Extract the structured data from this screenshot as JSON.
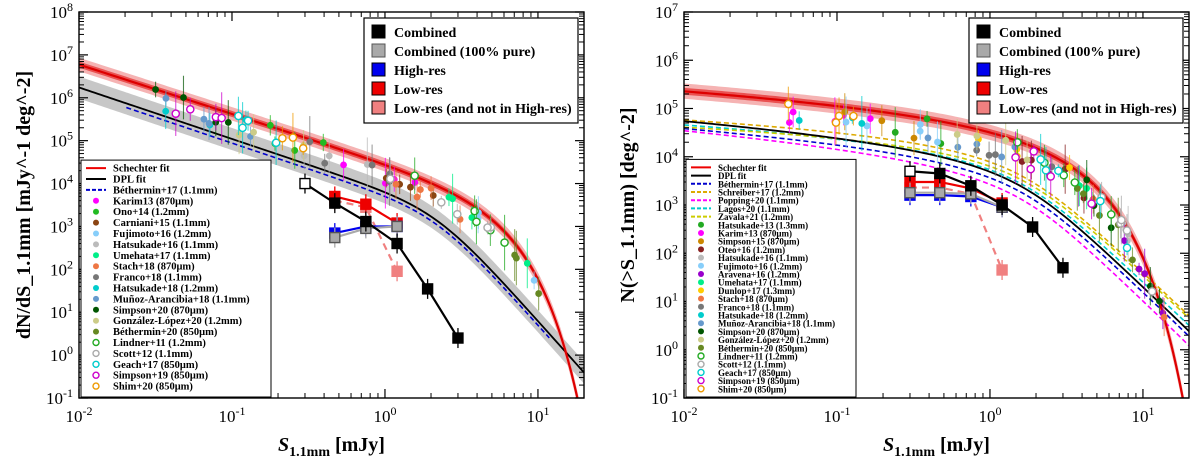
{
  "chart_data": [
    {
      "type": "scatter",
      "log_x": true,
      "log_y": true,
      "xlim": [
        0.01,
        20
      ],
      "ylim": [
        0.1,
        100000000
      ],
      "xlabel": "S_1.1mm [mJy]",
      "ylabel": "dN/dS_1.1mm [mJy^-1 deg^-2]",
      "xticks": [
        "10^-2",
        "10^-1",
        "10^0",
        "10^1"
      ],
      "yticks": [
        "10^-1",
        "10^0",
        "10^1",
        "10^2",
        "10^3",
        "10^4",
        "10^5",
        "10^6",
        "10^7",
        "10^8"
      ],
      "legend_main": {
        "placement": "top-right",
        "entries": [
          {
            "label": "Combined",
            "color": "#000000"
          },
          {
            "label": "Combined (100% pure)",
            "color": "#a9a9a9"
          },
          {
            "label": "High-res",
            "color": "#0000ee"
          },
          {
            "label": "Low-res",
            "color": "#ee0000"
          },
          {
            "label": "Low-res (and not in High-res)",
            "color": "#f08080"
          }
        ]
      },
      "legend_lit": {
        "placement": "bottom-left",
        "entries": [
          {
            "label": "Schechter fit",
            "color": "#ee0000",
            "kind": "line"
          },
          {
            "label": "DPL fit",
            "color": "#000000",
            "kind": "line"
          },
          {
            "label": "Béthermin+17 (1.1mm)",
            "color": "#0000cc",
            "kind": "dash"
          },
          {
            "label": "Karim13 (870μm)",
            "color": "#ff00ff",
            "kind": "dot"
          },
          {
            "label": "Ono+14 (1.2mm)",
            "color": "#22bb22",
            "kind": "dot"
          },
          {
            "label": "Carniani+15 (1.1mm)",
            "color": "#8b4513",
            "kind": "dot"
          },
          {
            "label": "Fujimoto+16 (1.2mm)",
            "color": "#87cefa",
            "kind": "dot"
          },
          {
            "label": "Hatsukade+16 (1.1mm)",
            "color": "#bbbbbb",
            "kind": "dot"
          },
          {
            "label": "Umehata+17 (1.1mm)",
            "color": "#00ee88",
            "kind": "dot"
          },
          {
            "label": "Stach+18 (870μm)",
            "color": "#ee7744",
            "kind": "dot"
          },
          {
            "label": "Franco+18 (1.1mm)",
            "color": "#777777",
            "kind": "dot"
          },
          {
            "label": "Hatsukade+18 (1.2mm)",
            "color": "#00cccc",
            "kind": "dot"
          },
          {
            "label": "Muñoz-Arancibia+18 (1.1mm)",
            "color": "#6699cc",
            "kind": "dot"
          },
          {
            "label": "Simpson+20 (870μm)",
            "color": "#005500",
            "kind": "dot"
          },
          {
            "label": "González-López+20 (1.2mm)",
            "color": "#cccc88",
            "kind": "dot"
          },
          {
            "label": "Béthermin+20 (850μm)",
            "color": "#668822",
            "kind": "dot"
          },
          {
            "label": "Lindner+11 (1.2mm)",
            "color": "#22aa22",
            "kind": "ring"
          },
          {
            "label": "Scott+12 (1.1mm)",
            "color": "#aaaaaa",
            "kind": "ring"
          },
          {
            "label": "Geach+17 (850μm)",
            "color": "#00cccc",
            "kind": "ring"
          },
          {
            "label": "Simpson+19 (850μm)",
            "color": "#cc00cc",
            "kind": "ring"
          },
          {
            "label": "Shim+20 (850μm)",
            "color": "#ee9900",
            "kind": "ring"
          }
        ]
      },
      "series": [
        {
          "name": "Combined",
          "color": "#000000",
          "x": [
            0.3,
            0.47,
            0.75,
            1.2,
            1.9,
            3.0
          ],
          "y": [
            10000,
            3500,
            1300,
            400,
            35,
            2.5
          ]
        },
        {
          "name": "Combined (100% pure)",
          "color": "#a9a9a9",
          "x": [
            0.47,
            0.75,
            1.2
          ],
          "y": [
            550,
            900,
            1000
          ]
        },
        {
          "name": "High-res",
          "color": "#0000ee",
          "x": [
            0.47,
            0.75,
            1.2
          ],
          "y": [
            700,
            1000,
            1000
          ]
        },
        {
          "name": "Low-res",
          "color": "#ee0000",
          "x": [
            0.47,
            0.75,
            1.2
          ],
          "y": [
            5000,
            3300,
            1200
          ]
        },
        {
          "name": "Low-res (and not in High-res)",
          "color": "#f08080",
          "x": [
            0.47,
            0.75,
            1.2
          ],
          "y": [
            4000,
            2800,
            90
          ]
        }
      ]
    },
    {
      "type": "scatter",
      "log_x": true,
      "log_y": true,
      "xlim": [
        0.01,
        20
      ],
      "ylim": [
        0.1,
        10000000
      ],
      "xlabel": "S_1.1mm [mJy]",
      "ylabel": "N(>S_1.1mm) [deg^-2]",
      "xticks": [
        "10^-2",
        "10^-1",
        "10^0",
        "10^1"
      ],
      "yticks": [
        "10^-1",
        "10^0",
        "10^1",
        "10^2",
        "10^3",
        "10^4",
        "10^5",
        "10^6",
        "10^7"
      ],
      "legend_main": {
        "placement": "top-right",
        "entries": [
          {
            "label": "Combined",
            "color": "#000000"
          },
          {
            "label": "Combined (100% pure)",
            "color": "#a9a9a9"
          },
          {
            "label": "High-res",
            "color": "#0000ee"
          },
          {
            "label": "Low-res",
            "color": "#ee0000"
          },
          {
            "label": "Low-res (and not in High-res)",
            "color": "#f08080"
          }
        ]
      },
      "legend_lit": {
        "placement": "bottom-left",
        "entries": [
          {
            "label": "Schechter fit",
            "color": "#ee0000",
            "kind": "line"
          },
          {
            "label": "DPL fit",
            "color": "#000000",
            "kind": "line"
          },
          {
            "label": "Béthermin+17 (1.1mm)",
            "color": "#0000cc",
            "kind": "dash"
          },
          {
            "label": "Schreiber+17 (1.2mm)",
            "color": "#ddaa00",
            "kind": "dash"
          },
          {
            "label": "Popping+20 (1.1mm)",
            "color": "#ff00ff",
            "kind": "dash"
          },
          {
            "label": "Lagos+20 (1.1mm)",
            "color": "#00cccc",
            "kind": "dash"
          },
          {
            "label": "Zavala+21 (1.2mm)",
            "color": "#cccc00",
            "kind": "dash"
          },
          {
            "label": "Hatsukade+13 (1.3mm)",
            "color": "#22aa22",
            "kind": "dot"
          },
          {
            "label": "Karim+13 (870μm)",
            "color": "#ff00ff",
            "kind": "dot"
          },
          {
            "label": "Simpson+15 (870μm)",
            "color": "#cc8800",
            "kind": "dot"
          },
          {
            "label": "Oteo+16 (1.2mm)",
            "color": "#882222",
            "kind": "dot"
          },
          {
            "label": "Hatsukade+16 (1.1mm)",
            "color": "#bbbbbb",
            "kind": "dot"
          },
          {
            "label": "Fujimoto+16 (1.2mm)",
            "color": "#87cefa",
            "kind": "dot"
          },
          {
            "label": "Aravena+16 (1.2mm)",
            "color": "#9900cc",
            "kind": "dot"
          },
          {
            "label": "Umehata+17 (1.1mm)",
            "color": "#00ee88",
            "kind": "dot"
          },
          {
            "label": "Dunlop+17 (1.3mm)",
            "color": "#ffcc00",
            "kind": "dot"
          },
          {
            "label": "Stach+18 (870μm)",
            "color": "#ee7744",
            "kind": "dot"
          },
          {
            "label": "Franco+18 (1.1mm)",
            "color": "#777777",
            "kind": "dot"
          },
          {
            "label": "Hatsukade+18 (1.2mm)",
            "color": "#00cccc",
            "kind": "dot"
          },
          {
            "label": "Muñoz-Arancibia+18 (1.1mm)",
            "color": "#6699cc",
            "kind": "dot"
          },
          {
            "label": "Simpson+20 (870μm)",
            "color": "#005500",
            "kind": "dot"
          },
          {
            "label": "González-López+20 (1.2mm)",
            "color": "#cccc88",
            "kind": "dot"
          },
          {
            "label": "Béthermin+20 (850μm)",
            "color": "#668822",
            "kind": "dot"
          },
          {
            "label": "Lindner+11 (1.2mm)",
            "color": "#22aa22",
            "kind": "ring"
          },
          {
            "label": "Scott+12 (1.1mm)",
            "color": "#aaaaaa",
            "kind": "ring"
          },
          {
            "label": "Geach+17 (850μm)",
            "color": "#00cccc",
            "kind": "ring"
          },
          {
            "label": "Simpson+19 (850μm)",
            "color": "#cc00cc",
            "kind": "ring"
          },
          {
            "label": "Shim+20 (850μm)",
            "color": "#ee9900",
            "kind": "ring"
          }
        ]
      },
      "series": [
        {
          "name": "Combined",
          "color": "#000000",
          "x": [
            0.3,
            0.47,
            0.75,
            1.2,
            1.9,
            3.0
          ],
          "y": [
            5000,
            4500,
            2500,
            1000,
            350,
            50
          ]
        },
        {
          "name": "Combined (100% pure)",
          "color": "#a9a9a9",
          "x": [
            0.3,
            0.47,
            0.75,
            1.2
          ],
          "y": [
            1800,
            1800,
            1700,
            900
          ]
        },
        {
          "name": "High-res",
          "color": "#0000ee",
          "x": [
            0.3,
            0.47,
            0.75,
            1.2
          ],
          "y": [
            1600,
            1600,
            1500,
            900
          ]
        },
        {
          "name": "Low-res",
          "color": "#ee0000",
          "x": [
            0.3,
            0.47,
            0.75,
            1.2
          ],
          "y": [
            3000,
            3000,
            2200,
            1100
          ]
        },
        {
          "name": "Low-res (and not in High-res)",
          "color": "#f08080",
          "x": [
            0.3,
            0.47,
            0.75,
            1.2
          ],
          "y": [
            2300,
            2300,
            1700,
            45
          ]
        }
      ]
    }
  ]
}
